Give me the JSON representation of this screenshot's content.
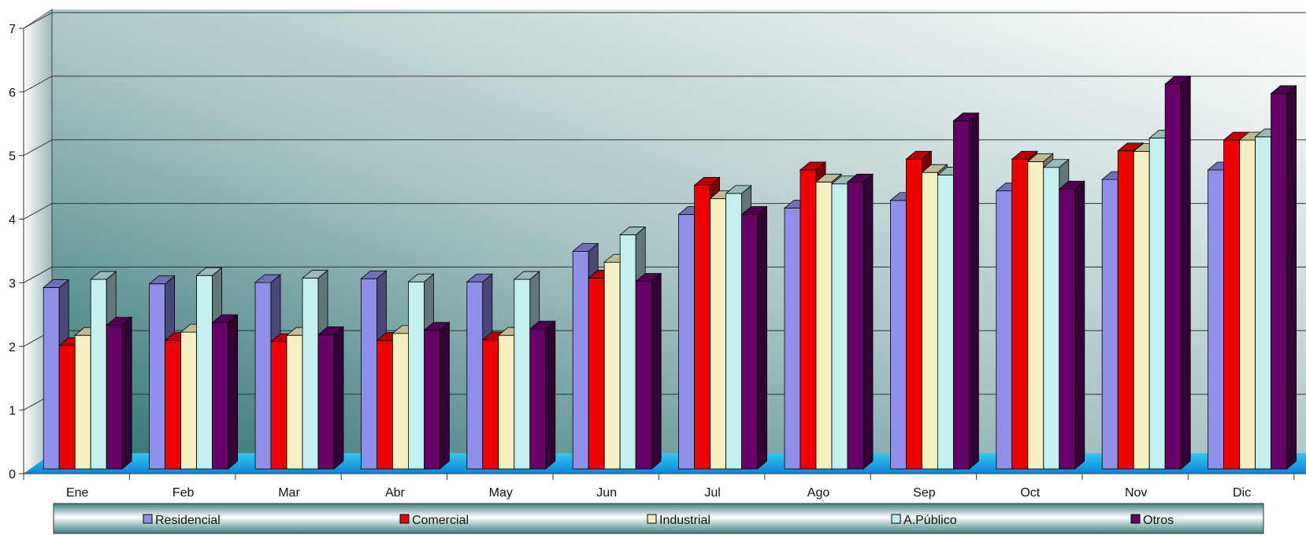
{
  "chart_data": {
    "type": "bar",
    "title": "",
    "xlabel": "",
    "ylabel": "",
    "ylim": [
      0,
      7
    ],
    "yticks": [
      0,
      1,
      2,
      3,
      4,
      5,
      6,
      7
    ],
    "grid": true,
    "legend_position": "bottom",
    "categories": [
      "Ene",
      "Feb",
      "Mar",
      "Abr",
      "May",
      "Jun",
      "Jul",
      "Ago",
      "Sep",
      "Oct",
      "Nov",
      "Dic"
    ],
    "series": [
      {
        "name": "Residencial",
        "color": "#8f8fe8",
        "values": [
          2.85,
          2.91,
          2.93,
          2.99,
          2.94,
          3.42,
          4.0,
          4.1,
          4.22,
          4.37,
          4.55,
          4.7
        ]
      },
      {
        "name": "Comercial",
        "color": "#ee0000",
        "values": [
          1.94,
          2.02,
          2.0,
          2.02,
          2.03,
          3.0,
          4.46,
          4.7,
          4.87,
          4.87,
          5.0,
          5.17
        ]
      },
      {
        "name": "Industrial",
        "color": "#f5f0c2",
        "values": [
          2.1,
          2.15,
          2.1,
          2.13,
          2.1,
          3.25,
          4.25,
          4.51,
          4.66,
          4.83,
          4.99,
          5.17
        ]
      },
      {
        "name": "A.Público",
        "color": "#c4f0f0",
        "values": [
          2.98,
          3.04,
          3.0,
          2.94,
          2.98,
          3.68,
          4.33,
          4.48,
          4.62,
          4.74,
          5.2,
          5.22
        ]
      },
      {
        "name": "Otros",
        "color": "#660066",
        "values": [
          2.26,
          2.3,
          2.11,
          2.18,
          2.2,
          2.95,
          4.0,
          4.51,
          5.47,
          4.4,
          6.05,
          5.9
        ]
      }
    ]
  }
}
